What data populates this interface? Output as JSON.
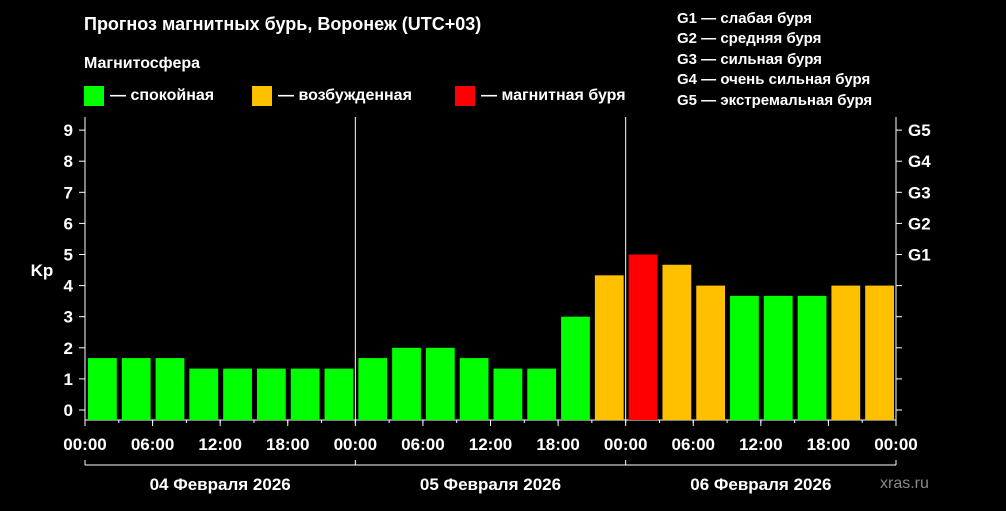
{
  "title": "Прогноз магнитных бурь, Воронеж (UTC+03)",
  "subtitle": "Магнитосфера",
  "legend": [
    {
      "label": "— спокойная",
      "color": "#00ff00"
    },
    {
      "label": "— возбужденная",
      "color": "#ffc000"
    },
    {
      "label": "— магнитная буря",
      "color": "#ff0000"
    }
  ],
  "storm_scale": [
    "G1 — слабая буря",
    "G2 — средняя буря",
    "G3 — сильная буря",
    "G4 — очень сильная буря",
    "G5 — экстремальная буря"
  ],
  "watermark": "xras.ru",
  "chart_data": {
    "type": "bar",
    "ylabel": "Kp",
    "ylim": [
      0,
      9
    ],
    "yticks": [
      "0",
      "1",
      "2",
      "3",
      "4",
      "5",
      "6",
      "7",
      "8",
      "9"
    ],
    "right_ticks": [
      {
        "value": 5,
        "label": "G1"
      },
      {
        "value": 6,
        "label": "G2"
      },
      {
        "value": 7,
        "label": "G3"
      },
      {
        "value": 8,
        "label": "G4"
      },
      {
        "value": 9,
        "label": "G5"
      }
    ],
    "xticks": [
      "00:00",
      "06:00",
      "12:00",
      "18:00",
      "00:00",
      "06:00",
      "12:00",
      "18:00",
      "00:00",
      "06:00",
      "12:00",
      "18:00",
      "00:00"
    ],
    "days": [
      "04 Февраля 2026",
      "05 Февраля 2026",
      "06 Февраля 2026"
    ],
    "values": [
      1.67,
      1.67,
      1.67,
      1.33,
      1.33,
      1.33,
      1.33,
      1.33,
      1.67,
      2.0,
      2.0,
      1.67,
      1.33,
      1.33,
      3.0,
      4.33,
      5.0,
      4.67,
      4.0,
      3.67,
      3.67,
      3.67,
      4.0,
      4.0
    ],
    "colors": {
      "quiet": "#00ff00",
      "active": "#ffc000",
      "storm": "#ff0000"
    },
    "grid": false
  }
}
